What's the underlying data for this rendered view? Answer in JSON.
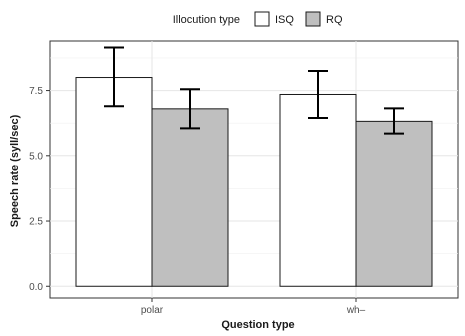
{
  "chart_data": {
    "type": "bar",
    "title": "",
    "xlabel": "Question type",
    "ylabel": "Speech rate (syll/sec)",
    "categories": [
      "polar",
      "wh–"
    ],
    "ylim": [
      -0.45,
      9.4
    ],
    "yticks": [
      0.0,
      2.5,
      5.0,
      7.5
    ],
    "ytick_labels": [
      "0.0",
      "2.5",
      "5.0",
      "7.5"
    ],
    "grid": true,
    "legend": {
      "title": "Illocution type",
      "position": "top"
    },
    "series": [
      {
        "name": "ISQ",
        "color": "#ffffff",
        "values": [
          8.0,
          7.35
        ],
        "err_low": [
          6.9,
          6.45
        ],
        "err_high": [
          9.15,
          8.25
        ]
      },
      {
        "name": "RQ",
        "color": "#bfbfbf",
        "values": [
          6.8,
          6.32
        ],
        "err_low": [
          6.05,
          5.85
        ],
        "err_high": [
          7.55,
          6.82
        ]
      }
    ]
  }
}
